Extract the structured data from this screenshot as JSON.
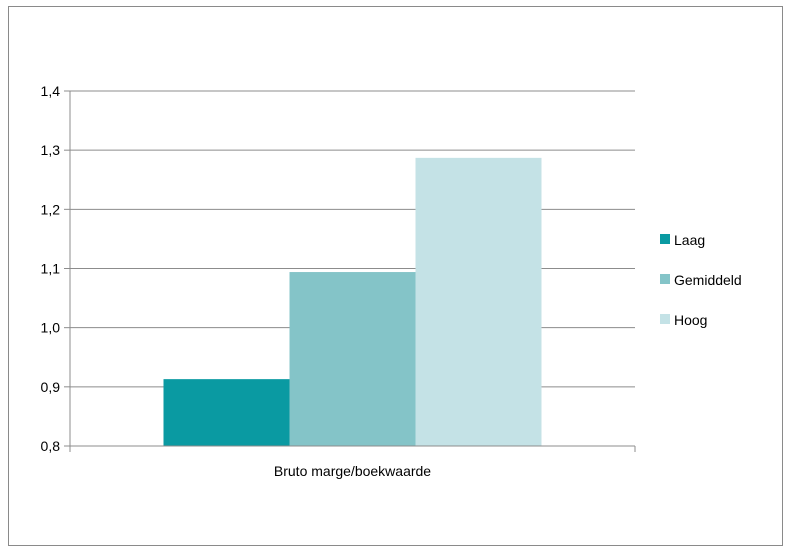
{
  "chart_data": {
    "type": "bar",
    "categories": [
      "Bruto marge/boekwaarde"
    ],
    "series": [
      {
        "name": "Laag",
        "values": [
          0.913
        ],
        "color": "#0a9aa2"
      },
      {
        "name": "Gemiddeld",
        "values": [
          1.094
        ],
        "color": "#84c4c8"
      },
      {
        "name": "Hoog",
        "values": [
          1.287
        ],
        "color": "#c4e2e6"
      }
    ],
    "y_ticks": [
      "0,8",
      "0,9",
      "1,0",
      "1,1",
      "1,2",
      "1,3",
      "1,4"
    ],
    "ylim": [
      0.8,
      1.4
    ],
    "grid": true,
    "legend_position": "right",
    "title": "",
    "xlabel": "",
    "ylabel": ""
  }
}
